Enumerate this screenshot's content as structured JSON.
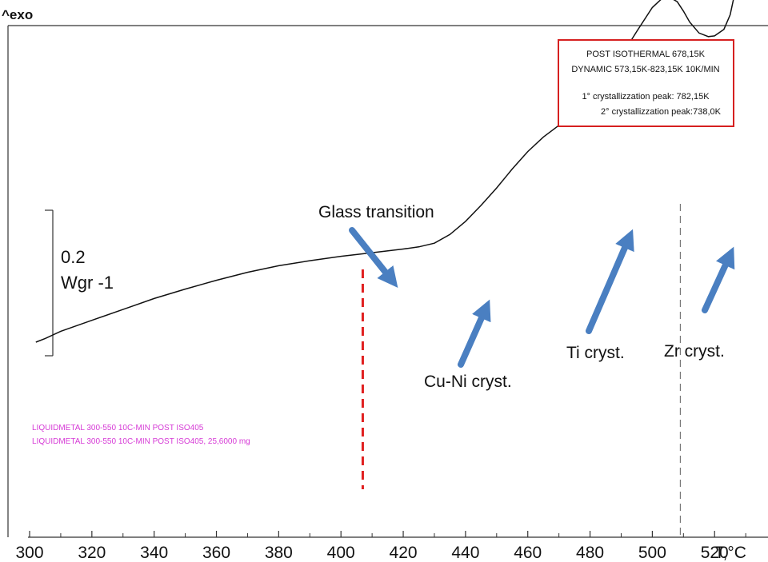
{
  "chart_data": {
    "type": "line",
    "title": "",
    "xlabel": "T,°C",
    "ylabel": "^exo",
    "xlim": [
      300,
      535
    ],
    "x_ticks": [
      300,
      320,
      340,
      360,
      380,
      400,
      420,
      440,
      460,
      480,
      500,
      520
    ],
    "grid": false,
    "series": [
      {
        "color": "#111111",
        "x": [
          302,
          305,
          310,
          320,
          330,
          340,
          350,
          360,
          370,
          380,
          390,
          400,
          410,
          420,
          425,
          430,
          435,
          440,
          445,
          450,
          455,
          460,
          465,
          470,
          475,
          480,
          485,
          490,
          495,
          500,
          503,
          506,
          508,
          510,
          512,
          515,
          518,
          520,
          523,
          525,
          527,
          529,
          531,
          533,
          535
        ],
        "y": [
          0.0,
          0.005,
          0.015,
          0.03,
          0.045,
          0.06,
          0.073,
          0.085,
          0.096,
          0.105,
          0.112,
          0.118,
          0.123,
          0.128,
          0.131,
          0.136,
          0.148,
          0.166,
          0.188,
          0.212,
          0.238,
          0.262,
          0.282,
          0.298,
          0.315,
          0.337,
          0.363,
          0.393,
          0.427,
          0.46,
          0.472,
          0.473,
          0.468,
          0.455,
          0.44,
          0.425,
          0.42,
          0.421,
          0.43,
          0.45,
          0.49,
          0.55,
          0.64,
          0.74,
          0.82
        ]
      }
    ],
    "scale_bar": {
      "value": "0.2",
      "unit": "Wgr -1"
    },
    "annotations": [
      {
        "text": "Glass transition",
        "x": 428
      },
      {
        "text": "Cu-Ni cryst.",
        "x": 455
      },
      {
        "text": "Ti cryst.",
        "x": 500
      },
      {
        "text": "Zr cryst.",
        "x": 527
      }
    ],
    "marker_red_dashed_x": 407,
    "marker_gray_dashed_x": 509,
    "info_box": [
      "POST ISOTHERMAL  678,15K",
      "DYNAMIC 573,15K-823,15K 10K/MIN",
      "1° crystallizzation peak: 782,15K",
      "2° crystallizzation peak:738,0K"
    ],
    "legend": [
      "LIQUIDMETAL 300-550 10C-MIN POST ISO405",
      "LIQUIDMETAL 300-550 10C-MIN POST ISO405, 25,6000 mg"
    ],
    "colors": {
      "curve": "#111111",
      "arrow": "#4a7fc1",
      "red_marker": "#e02020",
      "box_border": "#d62020",
      "legend_text": "#d63ad6"
    }
  }
}
